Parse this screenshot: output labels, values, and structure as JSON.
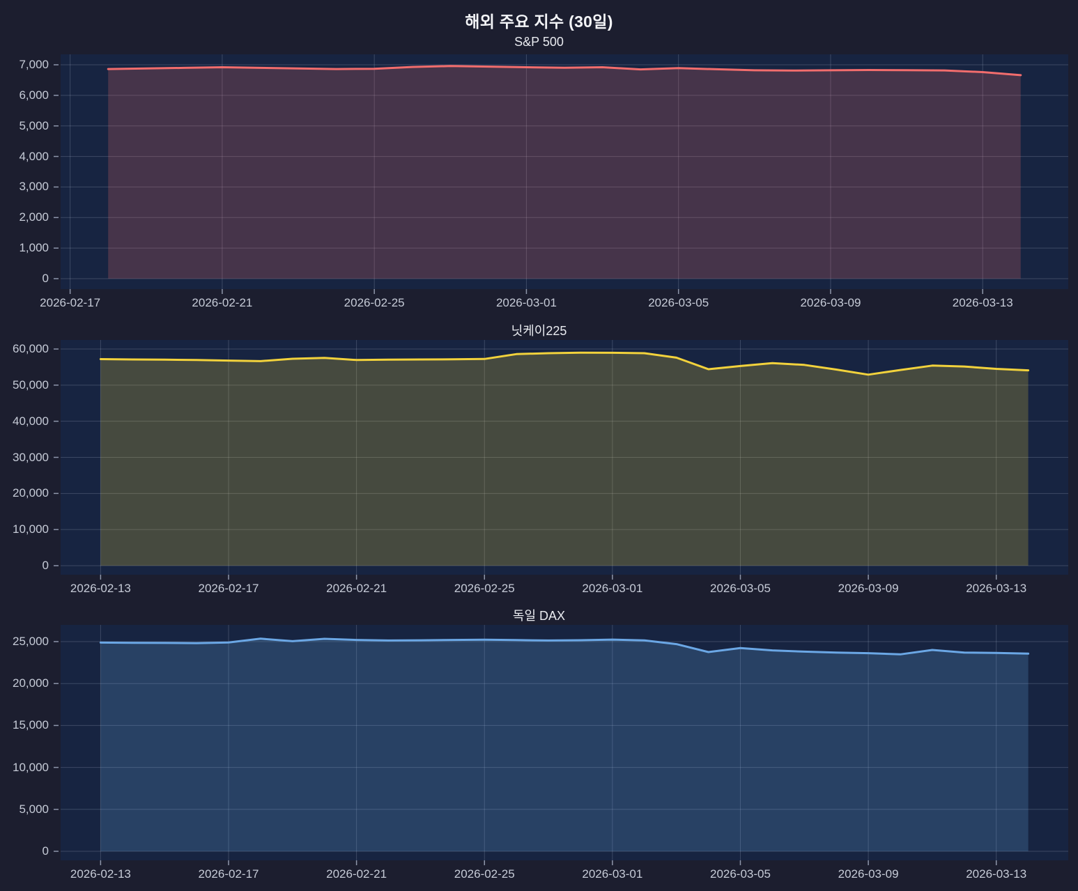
{
  "title": "해외 주요 지수 (30일)",
  "colors": {
    "background": "#1c1e2f",
    "plot_background": "#172441",
    "gridline": "rgba(194,204,228,0.22)",
    "tick_mark": "#8f97ab",
    "tick_label": "#c6cbd7",
    "title_text": "#f4f5f8"
  },
  "chart_data": [
    {
      "type": "area",
      "title": "S&P 500",
      "line_color": "#f26d6d",
      "xlabel": "",
      "ylabel": "",
      "grid": true,
      "legend": "none",
      "ylim": [
        0,
        7000
      ],
      "ytick_values": [
        0,
        1000,
        2000,
        3000,
        4000,
        5000,
        6000,
        7000
      ],
      "ytick_labels": [
        "0",
        "1,000",
        "2,000",
        "3,000",
        "4,000",
        "5,000",
        "6,000",
        "7,000"
      ],
      "xtick_dates": [
        "2026-02-17",
        "2026-02-21",
        "2026-02-25",
        "2026-03-01",
        "2026-03-05",
        "2026-03-09",
        "2026-03-13"
      ],
      "x": [
        "2026-02-18",
        "2026-02-19",
        "2026-02-20",
        "2026-02-21",
        "2026-02-22",
        "2026-02-23",
        "2026-02-24",
        "2026-02-25",
        "2026-02-26",
        "2026-02-27",
        "2026-02-28",
        "2026-03-01",
        "2026-03-02",
        "2026-03-03",
        "2026-03-04",
        "2026-03-05",
        "2026-03-06",
        "2026-03-07",
        "2026-03-08",
        "2026-03-09",
        "2026-03-10",
        "2026-03-11",
        "2026-03-12",
        "2026-03-13",
        "2026-03-14"
      ],
      "values": [
        6860,
        6880,
        6900,
        6920,
        6900,
        6880,
        6860,
        6870,
        6930,
        6960,
        6940,
        6920,
        6905,
        6920,
        6850,
        6890,
        6855,
        6820,
        6810,
        6820,
        6830,
        6825,
        6815,
        6760,
        6660
      ]
    },
    {
      "type": "area",
      "title": "닛케이225",
      "line_color": "#f2d23c",
      "xlabel": "",
      "ylabel": "",
      "grid": true,
      "legend": "none",
      "ylim": [
        0,
        60000
      ],
      "ytick_values": [
        0,
        10000,
        20000,
        30000,
        40000,
        50000,
        60000
      ],
      "ytick_labels": [
        "0",
        "10,000",
        "20,000",
        "30,000",
        "40,000",
        "50,000",
        "60,000"
      ],
      "xtick_dates": [
        "2026-02-13",
        "2026-02-17",
        "2026-02-21",
        "2026-02-25",
        "2026-03-01",
        "2026-03-05",
        "2026-03-09",
        "2026-03-13"
      ],
      "x": [
        "2026-02-13",
        "2026-02-14",
        "2026-02-15",
        "2026-02-16",
        "2026-02-17",
        "2026-02-18",
        "2026-02-19",
        "2026-02-20",
        "2026-02-21",
        "2026-02-22",
        "2026-02-23",
        "2026-02-24",
        "2026-02-25",
        "2026-02-26",
        "2026-02-27",
        "2026-02-28",
        "2026-03-01",
        "2026-03-02",
        "2026-03-03",
        "2026-03-04",
        "2026-03-05",
        "2026-03-06",
        "2026-03-07",
        "2026-03-08",
        "2026-03-09",
        "2026-03-10",
        "2026-03-11",
        "2026-03-12",
        "2026-03-13",
        "2026-03-14"
      ],
      "values": [
        57200,
        57100,
        57050,
        56950,
        56800,
        56650,
        57300,
        57550,
        56950,
        57050,
        57100,
        57150,
        57250,
        58600,
        58850,
        59000,
        58950,
        58850,
        57600,
        54400,
        55300,
        56100,
        55600,
        54300,
        52900,
        54200,
        55400,
        55150,
        54500,
        54100
      ]
    },
    {
      "type": "area",
      "title": "독일 DAX",
      "line_color": "#6ba7e5",
      "xlabel": "",
      "ylabel": "",
      "grid": true,
      "legend": "none",
      "ylim": [
        0,
        25000
      ],
      "ytick_values": [
        0,
        5000,
        10000,
        15000,
        20000,
        25000
      ],
      "ytick_labels": [
        "0",
        "5,000",
        "10,000",
        "15,000",
        "20,000",
        "25,000"
      ],
      "xtick_dates": [
        "2026-02-13",
        "2026-02-17",
        "2026-02-21",
        "2026-02-25",
        "2026-03-01",
        "2026-03-05",
        "2026-03-09",
        "2026-03-13"
      ],
      "x": [
        "2026-02-13",
        "2026-02-14",
        "2026-02-15",
        "2026-02-16",
        "2026-02-17",
        "2026-02-18",
        "2026-02-19",
        "2026-02-20",
        "2026-02-21",
        "2026-02-22",
        "2026-02-23",
        "2026-02-24",
        "2026-02-25",
        "2026-02-26",
        "2026-02-27",
        "2026-02-28",
        "2026-03-01",
        "2026-03-02",
        "2026-03-03",
        "2026-03-04",
        "2026-03-05",
        "2026-03-06",
        "2026-03-07",
        "2026-03-08",
        "2026-03-09",
        "2026-03-10",
        "2026-03-11",
        "2026-03-12",
        "2026-03-13",
        "2026-03-14"
      ],
      "values": [
        24880,
        24860,
        24840,
        24820,
        24900,
        25350,
        25050,
        25330,
        25200,
        25130,
        25160,
        25200,
        25230,
        25180,
        25130,
        25170,
        25240,
        25150,
        24700,
        23750,
        24230,
        23950,
        23800,
        23700,
        23620,
        23480,
        24000,
        23700,
        23650,
        23560
      ]
    }
  ]
}
